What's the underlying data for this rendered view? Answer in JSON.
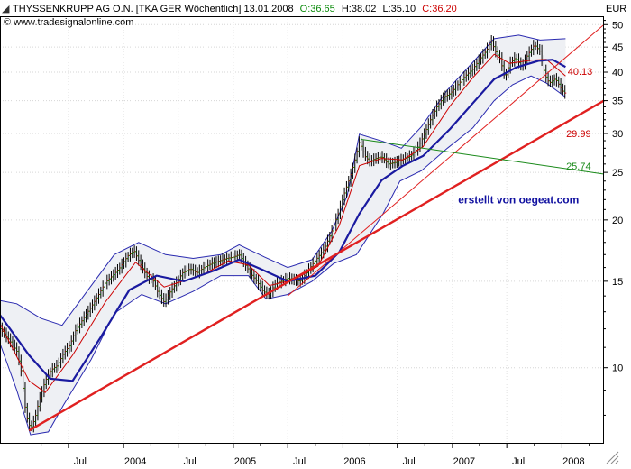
{
  "header": {
    "title": "THYSSENKRUPP AG O.N. [TKA GER  Wöchentlich] 13.01.2008",
    "open_label": "O:36.65",
    "high_label": "H:38.02",
    "low_label": "L:35.10",
    "close_label": "C:36.20",
    "source": "© www.tradesignalonline.com"
  },
  "colors": {
    "open": "#0a8a0a",
    "close": "#cc0000",
    "ma_fast": "#cc0000",
    "ma_slow": "#1a1aa0",
    "trend_red": "#e02020",
    "trend_green": "#1a8a1a",
    "bollinger": "#2a2ab0",
    "watermark": "#1010a0"
  },
  "chart_data": {
    "type": "line",
    "title": "THYSSENKRUPP AG O.N. [TKA GER  Wöchentlich] 13.01.2008",
    "y_unit_label": "EUR",
    "y_scale": "log",
    "ylim": [
      7,
      52
    ],
    "y_ticks": [
      10,
      15,
      20,
      25,
      30,
      35,
      40,
      45,
      50
    ],
    "x_ticks": [
      "Jul",
      "2004",
      "Jul",
      "2005",
      "Jul",
      "2006",
      "Jul",
      "2007",
      "Jul",
      "2008"
    ],
    "x_tick_dates": [
      "2003-07-01",
      "2004-01-01",
      "2004-07-01",
      "2005-01-01",
      "2005-07-01",
      "2006-01-01",
      "2006-07-01",
      "2007-01-01",
      "2007-07-01",
      "2008-01-01"
    ],
    "xlim": [
      "2002-11-15",
      "2008-05-20"
    ],
    "grid": true,
    "series": [
      {
        "kind": "price",
        "points": [
          [
            "2002-11-15",
            12.0
          ],
          [
            "2002-12-15",
            11.4
          ],
          [
            "2003-01-10",
            10.8
          ],
          [
            "2003-01-25",
            9.8
          ],
          [
            "2003-02-10",
            8.0
          ],
          [
            "2003-02-25",
            7.5
          ],
          [
            "2003-03-12",
            7.9
          ],
          [
            "2003-03-26",
            8.6
          ],
          [
            "2003-04-15",
            9.4
          ],
          [
            "2003-05-05",
            9.9
          ],
          [
            "2003-05-25",
            10.1
          ],
          [
            "2003-06-15",
            10.7
          ],
          [
            "2003-07-05",
            11.1
          ],
          [
            "2003-07-25",
            11.9
          ],
          [
            "2003-08-20",
            12.6
          ],
          [
            "2003-09-15",
            13.3
          ],
          [
            "2003-10-10",
            14.1
          ],
          [
            "2003-11-01",
            14.9
          ],
          [
            "2003-11-25",
            15.4
          ],
          [
            "2003-12-20",
            16.0
          ],
          [
            "2004-01-15",
            16.9
          ],
          [
            "2004-02-05",
            17.3
          ],
          [
            "2004-02-25",
            16.3
          ],
          [
            "2004-03-20",
            15.3
          ],
          [
            "2004-04-10",
            15.0
          ],
          [
            "2004-04-25",
            14.2
          ],
          [
            "2004-05-15",
            13.6
          ],
          [
            "2004-06-05",
            14.3
          ],
          [
            "2004-06-25",
            14.9
          ],
          [
            "2004-07-15",
            15.6
          ],
          [
            "2004-08-10",
            15.9
          ],
          [
            "2004-09-01",
            15.6
          ],
          [
            "2004-09-25",
            16.0
          ],
          [
            "2004-10-20",
            16.3
          ],
          [
            "2004-11-15",
            16.5
          ],
          [
            "2004-12-10",
            16.7
          ],
          [
            "2005-01-01",
            16.8
          ],
          [
            "2005-01-20",
            17.0
          ],
          [
            "2005-02-10",
            16.2
          ],
          [
            "2005-03-01",
            15.5
          ],
          [
            "2005-03-20",
            15.0
          ],
          [
            "2005-04-10",
            14.3
          ],
          [
            "2005-04-30",
            14.1
          ],
          [
            "2005-05-20",
            14.8
          ],
          [
            "2005-06-10",
            15.0
          ],
          [
            "2005-07-01",
            15.2
          ],
          [
            "2005-07-20",
            15.1
          ],
          [
            "2005-08-10",
            15.0
          ],
          [
            "2005-08-30",
            15.5
          ],
          [
            "2005-09-20",
            16.2
          ],
          [
            "2005-10-10",
            16.8
          ],
          [
            "2005-11-01",
            17.5
          ],
          [
            "2005-11-25",
            19.0
          ],
          [
            "2005-12-15",
            20.5
          ],
          [
            "2006-01-05",
            22.6
          ],
          [
            "2006-01-25",
            24.5
          ],
          [
            "2006-02-10",
            26.5
          ],
          [
            "2006-02-25",
            28.9
          ],
          [
            "2006-03-15",
            27.0
          ],
          [
            "2006-04-01",
            26.3
          ],
          [
            "2006-04-20",
            26.7
          ],
          [
            "2006-05-10",
            26.9
          ],
          [
            "2006-06-01",
            26.0
          ],
          [
            "2006-06-25",
            26.2
          ],
          [
            "2006-07-20",
            26.6
          ],
          [
            "2006-08-15",
            27.0
          ],
          [
            "2006-09-05",
            27.9
          ],
          [
            "2006-09-25",
            29.5
          ],
          [
            "2006-10-20",
            32.0
          ],
          [
            "2006-11-10",
            34.0
          ],
          [
            "2006-12-01",
            35.5
          ],
          [
            "2006-12-25",
            36.2
          ],
          [
            "2007-01-20",
            37.8
          ],
          [
            "2007-02-15",
            39.4
          ],
          [
            "2007-03-10",
            40.6
          ],
          [
            "2007-04-01",
            42.4
          ],
          [
            "2007-04-25",
            44.3
          ],
          [
            "2007-05-10",
            46.4
          ],
          [
            "2007-05-25",
            44.0
          ],
          [
            "2007-06-10",
            42.5
          ],
          [
            "2007-06-25",
            38.8
          ],
          [
            "2007-07-10",
            41.6
          ],
          [
            "2007-07-30",
            42.8
          ],
          [
            "2007-08-20",
            41.0
          ],
          [
            "2007-09-10",
            43.5
          ],
          [
            "2007-10-01",
            45.5
          ],
          [
            "2007-10-20",
            44.1
          ],
          [
            "2007-11-05",
            39.5
          ],
          [
            "2007-11-20",
            38.0
          ],
          [
            "2007-12-10",
            38.8
          ],
          [
            "2008-01-05",
            36.5
          ],
          [
            "2008-01-13",
            36.2
          ]
        ]
      },
      {
        "kind": "ma_fast",
        "points": [
          [
            "2002-11-15",
            12.3
          ],
          [
            "2003-02-20",
            9.4
          ],
          [
            "2003-04-15",
            8.9
          ],
          [
            "2003-07-15",
            10.6
          ],
          [
            "2003-11-01",
            13.6
          ],
          [
            "2004-02-10",
            16.4
          ],
          [
            "2004-05-15",
            14.6
          ],
          [
            "2004-09-15",
            15.4
          ],
          [
            "2004-12-15",
            16.5
          ],
          [
            "2005-02-20",
            16.2
          ],
          [
            "2005-05-01",
            14.7
          ],
          [
            "2005-07-20",
            15.1
          ],
          [
            "2005-10-10",
            16.1
          ],
          [
            "2005-12-20",
            19.5
          ],
          [
            "2006-02-25",
            25.8
          ],
          [
            "2006-05-10",
            26.7
          ],
          [
            "2006-07-20",
            26.5
          ],
          [
            "2006-09-25",
            28.2
          ],
          [
            "2006-12-25",
            34.2
          ],
          [
            "2007-03-10",
            39.0
          ],
          [
            "2007-05-20",
            43.5
          ],
          [
            "2007-07-10",
            41.7
          ],
          [
            "2007-09-20",
            42.3
          ],
          [
            "2007-11-10",
            42.5
          ],
          [
            "2008-01-13",
            39.3
          ]
        ]
      },
      {
        "kind": "ma_slow",
        "points": [
          [
            "2002-11-15",
            12.8
          ],
          [
            "2003-02-20",
            10.6
          ],
          [
            "2003-05-01",
            9.5
          ],
          [
            "2003-07-15",
            9.4
          ],
          [
            "2003-10-15",
            11.5
          ],
          [
            "2004-01-20",
            14.4
          ],
          [
            "2004-04-20",
            15.4
          ],
          [
            "2004-07-20",
            15.0
          ],
          [
            "2004-11-01",
            15.8
          ],
          [
            "2005-01-20",
            16.6
          ],
          [
            "2005-04-01",
            15.9
          ],
          [
            "2005-07-01",
            15.0
          ],
          [
            "2005-10-01",
            15.4
          ],
          [
            "2005-12-20",
            17.2
          ],
          [
            "2006-02-25",
            20.6
          ],
          [
            "2006-05-10",
            24.1
          ],
          [
            "2006-07-20",
            25.8
          ],
          [
            "2006-09-25",
            27.0
          ],
          [
            "2006-12-25",
            30.7
          ],
          [
            "2007-03-10",
            34.6
          ],
          [
            "2007-05-20",
            38.7
          ],
          [
            "2007-08-01",
            40.9
          ],
          [
            "2007-10-15",
            42.2
          ],
          [
            "2007-12-01",
            42.4
          ],
          [
            "2008-01-13",
            41.0
          ]
        ]
      },
      {
        "kind": "band_upper",
        "points": [
          [
            "2002-11-15",
            13.7
          ],
          [
            "2003-01-10",
            13.5
          ],
          [
            "2003-04-01",
            12.6
          ],
          [
            "2003-06-10",
            12.2
          ],
          [
            "2003-09-01",
            14.3
          ],
          [
            "2003-12-01",
            17.0
          ],
          [
            "2004-02-20",
            18.0
          ],
          [
            "2004-05-20",
            17.0
          ],
          [
            "2004-08-20",
            16.7
          ],
          [
            "2004-11-20",
            17.0
          ],
          [
            "2005-01-20",
            17.8
          ],
          [
            "2005-04-15",
            16.8
          ],
          [
            "2005-07-01",
            16.0
          ],
          [
            "2005-09-20",
            16.6
          ],
          [
            "2005-11-25",
            19.0
          ],
          [
            "2006-01-15",
            22.4
          ],
          [
            "2006-02-25",
            29.9
          ],
          [
            "2006-05-15",
            28.9
          ],
          [
            "2006-07-15",
            28.0
          ],
          [
            "2006-09-20",
            31.0
          ],
          [
            "2006-12-15",
            36.8
          ],
          [
            "2007-03-10",
            41.9
          ],
          [
            "2007-05-20",
            46.8
          ],
          [
            "2007-08-10",
            47.6
          ],
          [
            "2007-10-20",
            46.5
          ],
          [
            "2008-01-13",
            46.8
          ]
        ]
      },
      {
        "kind": "band_lower",
        "points": [
          [
            "2002-11-15",
            11.2
          ],
          [
            "2003-01-10",
            9.0
          ],
          [
            "2003-02-25",
            7.3
          ],
          [
            "2003-04-25",
            7.4
          ],
          [
            "2003-06-15",
            8.4
          ],
          [
            "2003-09-15",
            10.4
          ],
          [
            "2003-12-01",
            12.9
          ],
          [
            "2004-03-01",
            14.1
          ],
          [
            "2004-05-20",
            13.5
          ],
          [
            "2004-08-20",
            14.3
          ],
          [
            "2004-11-20",
            15.4
          ],
          [
            "2005-02-20",
            15.4
          ],
          [
            "2005-04-20",
            13.8
          ],
          [
            "2005-07-01",
            14.1
          ],
          [
            "2005-09-20",
            15.0
          ],
          [
            "2005-12-01",
            16.3
          ],
          [
            "2006-02-15",
            17.0
          ],
          [
            "2006-05-15",
            20.6
          ],
          [
            "2006-07-10",
            24.0
          ],
          [
            "2006-09-20",
            25.2
          ],
          [
            "2006-12-15",
            28.0
          ],
          [
            "2007-03-10",
            30.8
          ],
          [
            "2007-05-20",
            35.0
          ],
          [
            "2007-07-20",
            37.7
          ],
          [
            "2007-09-20",
            39.3
          ],
          [
            "2007-11-10",
            38.0
          ],
          [
            "2008-01-13",
            35.6
          ]
        ]
      }
    ],
    "trendlines": [
      {
        "kind": "support",
        "from": [
          "2003-02-20",
          7.45
        ],
        "to": [
          "2008-05-20",
          35.0
        ],
        "width": 2.4
      },
      {
        "kind": "support_thin",
        "from": [
          "2005-07-01",
          14.0
        ],
        "to": [
          "2008-05-20",
          50.0
        ],
        "width": 1
      },
      {
        "kind": "green",
        "from": [
          "2006-03-01",
          29.2
        ],
        "to": [
          "2008-05-20",
          24.8
        ],
        "width": 1
      }
    ],
    "annotations": [
      {
        "label": "40.13",
        "x": "2008-01-20",
        "y": 40.13,
        "color": "#cc0000"
      },
      {
        "label": "29.99",
        "x": "2008-01-15",
        "y": 29.99,
        "color": "#cc0000"
      },
      {
        "label": "25.74",
        "x": "2008-01-15",
        "y": 25.74,
        "color": "#1a8a1a"
      },
      {
        "label": "erstellt von oegeat.com",
        "x": "2007-01-20",
        "y": 22.0,
        "color": "#1010a0"
      }
    ]
  }
}
